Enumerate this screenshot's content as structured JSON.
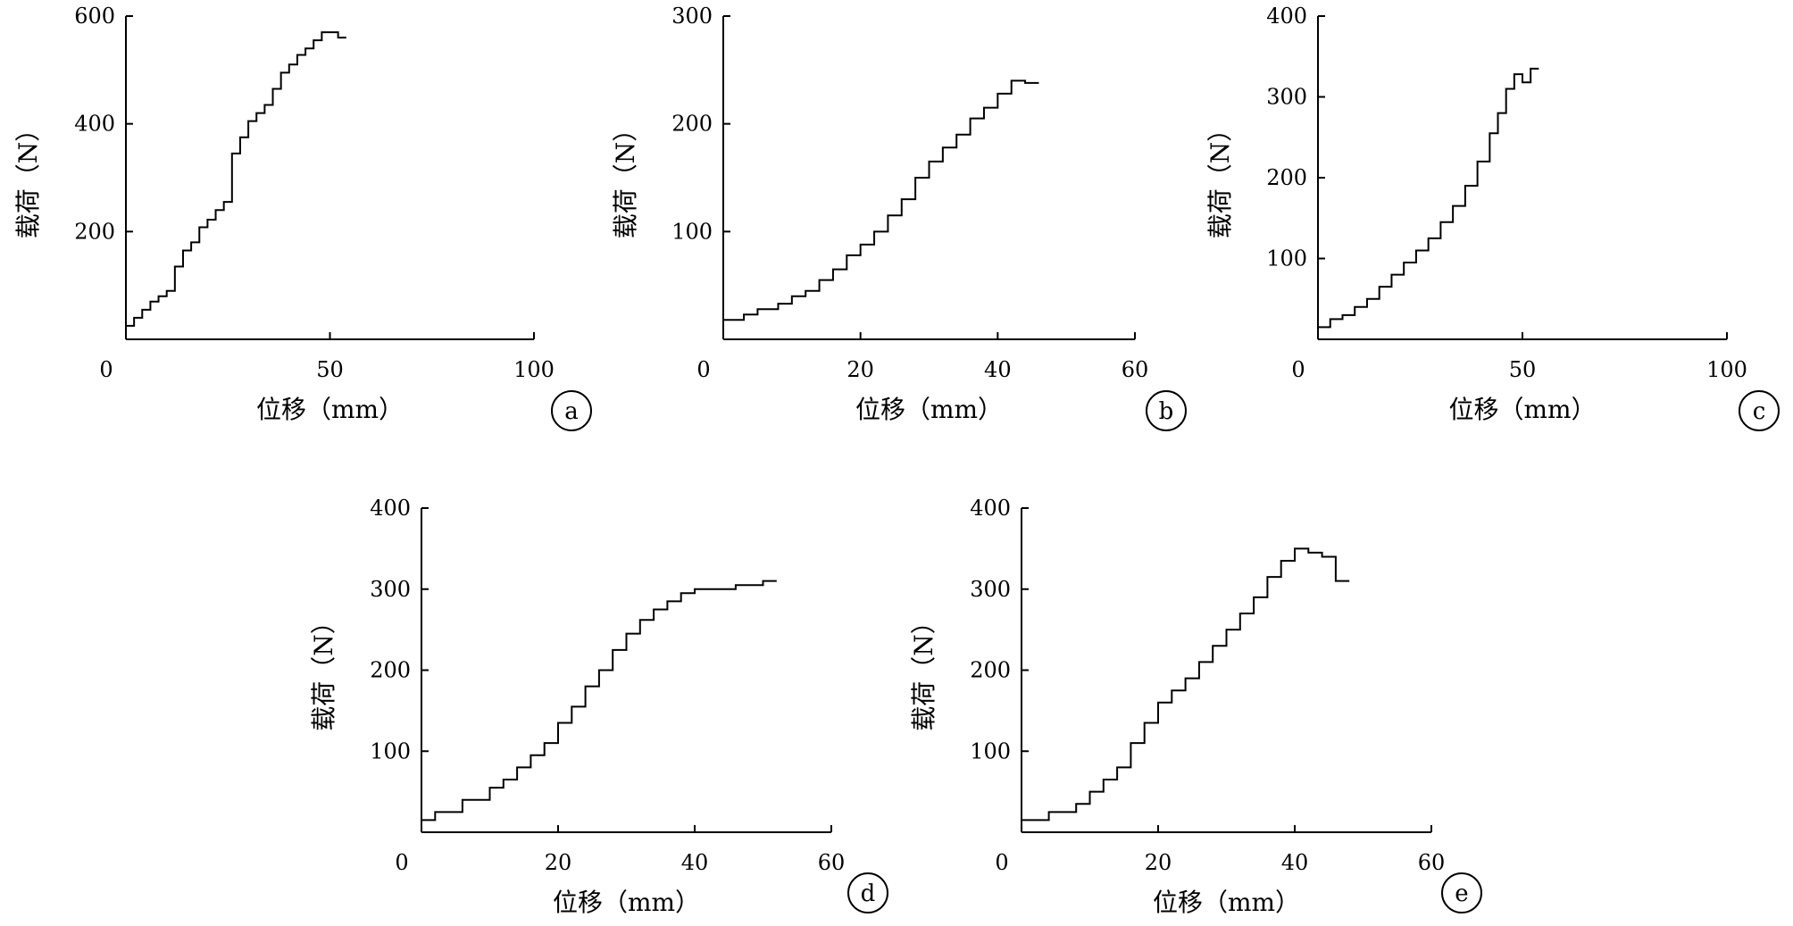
{
  "colors": {
    "line": "#000000",
    "background": "#ffffff"
  },
  "chart_data": [
    {
      "type": "line",
      "panel": "a",
      "xlabel": "位移（mm）",
      "ylabel": "载荷（N）",
      "xlim": [
        0,
        100
      ],
      "ylim": [
        0,
        600
      ],
      "xticks": [
        0,
        50,
        100
      ],
      "yticks": [
        200,
        400,
        600
      ],
      "x": [
        0,
        2,
        4,
        6,
        8,
        10,
        12,
        14,
        16,
        18,
        20,
        22,
        24,
        26,
        27,
        28,
        30,
        32,
        34,
        36,
        38,
        40,
        42,
        44,
        46,
        48,
        49,
        50,
        52,
        54
      ],
      "y": [
        10,
        25,
        40,
        55,
        70,
        80,
        90,
        135,
        165,
        180,
        208,
        222,
        240,
        255,
        345,
        345,
        375,
        405,
        420,
        435,
        465,
        495,
        510,
        528,
        540,
        555,
        570,
        570,
        570,
        560
      ]
    },
    {
      "type": "line",
      "panel": "b",
      "xlabel": "位移（mm）",
      "ylabel": "载荷（N）",
      "xlim": [
        0,
        60
      ],
      "ylim": [
        0,
        300
      ],
      "xticks": [
        0,
        20,
        40,
        60
      ],
      "yticks": [
        100,
        200,
        300
      ],
      "x": [
        0,
        3,
        5,
        8,
        10,
        12,
        14,
        16,
        18,
        20,
        22,
        24,
        26,
        28,
        30,
        32,
        34,
        36,
        38,
        40,
        42,
        44,
        46
      ],
      "y": [
        15,
        18,
        23,
        28,
        33,
        40,
        45,
        55,
        65,
        78,
        88,
        100,
        115,
        130,
        150,
        165,
        178,
        190,
        205,
        215,
        228,
        240,
        238
      ]
    },
    {
      "type": "line",
      "panel": "c",
      "xlabel": "位移（mm）",
      "ylabel": "载荷（N）",
      "xlim": [
        0,
        100
      ],
      "ylim": [
        0,
        400
      ],
      "xticks": [
        0,
        50,
        100
      ],
      "yticks": [
        100,
        200,
        300,
        400
      ],
      "x": [
        0,
        3,
        6,
        9,
        12,
        15,
        18,
        21,
        24,
        27,
        30,
        33,
        36,
        39,
        42,
        44,
        46,
        48,
        50,
        52,
        54
      ],
      "y": [
        5,
        15,
        25,
        30,
        40,
        50,
        65,
        80,
        95,
        110,
        125,
        145,
        165,
        190,
        220,
        255,
        280,
        310,
        328,
        318,
        335
      ]
    },
    {
      "type": "line",
      "panel": "d",
      "xlabel": "位移（mm）",
      "ylabel": "载荷（N）",
      "xlim": [
        0,
        60
      ],
      "ylim": [
        0,
        400
      ],
      "xticks": [
        0,
        20,
        40,
        60
      ],
      "yticks": [
        100,
        200,
        300,
        400
      ],
      "x": [
        0,
        2,
        6,
        10,
        12,
        14,
        16,
        18,
        20,
        22,
        24,
        26,
        28,
        30,
        32,
        34,
        36,
        38,
        40,
        42,
        46,
        50,
        52
      ],
      "y": [
        10,
        15,
        25,
        40,
        55,
        65,
        80,
        95,
        110,
        135,
        155,
        180,
        200,
        225,
        245,
        262,
        275,
        285,
        295,
        300,
        300,
        305,
        310
      ]
    },
    {
      "type": "line",
      "panel": "e",
      "xlabel": "位移（mm）",
      "ylabel": "载荷（N）",
      "xlim": [
        0,
        60
      ],
      "ylim": [
        0,
        400
      ],
      "xticks": [
        0,
        20,
        40,
        60
      ],
      "yticks": [
        100,
        200,
        300,
        400
      ],
      "x": [
        0,
        4,
        8,
        10,
        12,
        14,
        16,
        18,
        20,
        22,
        24,
        26,
        28,
        30,
        32,
        34,
        36,
        38,
        40,
        42,
        44,
        46,
        48
      ],
      "y": [
        10,
        15,
        25,
        35,
        50,
        65,
        80,
        110,
        135,
        160,
        175,
        190,
        210,
        230,
        250,
        270,
        290,
        315,
        335,
        350,
        345,
        340,
        310
      ]
    }
  ]
}
